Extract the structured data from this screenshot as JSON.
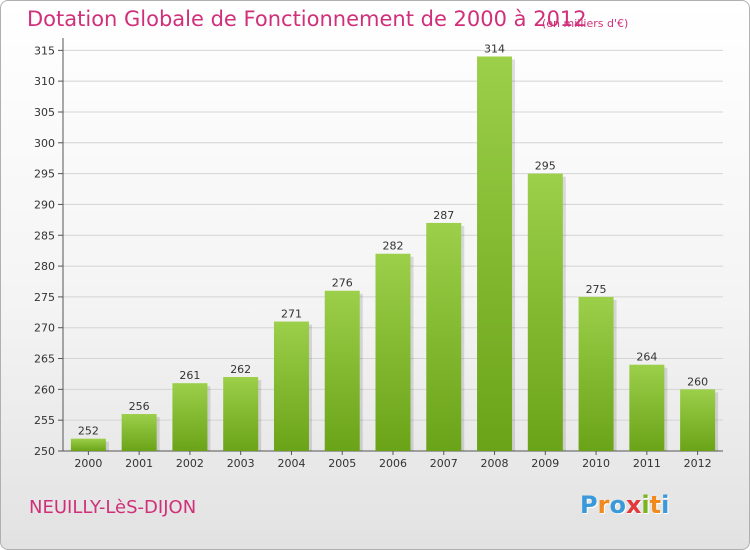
{
  "chart_data": {
    "type": "bar",
    "title": "Dotation Globale de Fonctionnement de 2000 à 2012",
    "subtitle": "(en milliers d'€)",
    "categories": [
      "2000",
      "2001",
      "2002",
      "2003",
      "2004",
      "2005",
      "2006",
      "2007",
      "2008",
      "2009",
      "2010",
      "2011",
      "2012"
    ],
    "values": [
      252,
      256,
      261,
      262,
      271,
      276,
      282,
      287,
      314,
      295,
      275,
      264,
      260
    ],
    "yticks": [
      250,
      255,
      260,
      265,
      270,
      275,
      280,
      285,
      290,
      295,
      300,
      305,
      310,
      315
    ],
    "ylim": [
      250,
      317
    ],
    "grid": true,
    "bar_color_top": "#9ccf4a",
    "bar_color_bottom": "#6aa318",
    "xlabel": "",
    "ylabel": ""
  },
  "footer": {
    "commune": "NEUILLY-LèS-DIJON",
    "logo_letters": [
      "P",
      "r",
      "o",
      "x",
      "i",
      "t",
      "i"
    ],
    "logo_colors": [
      "#3a9ad9",
      "#f08a1c",
      "#3a9ad9",
      "#e23a3a",
      "#7ab51d",
      "#f08a1c",
      "#3a9ad9"
    ]
  }
}
